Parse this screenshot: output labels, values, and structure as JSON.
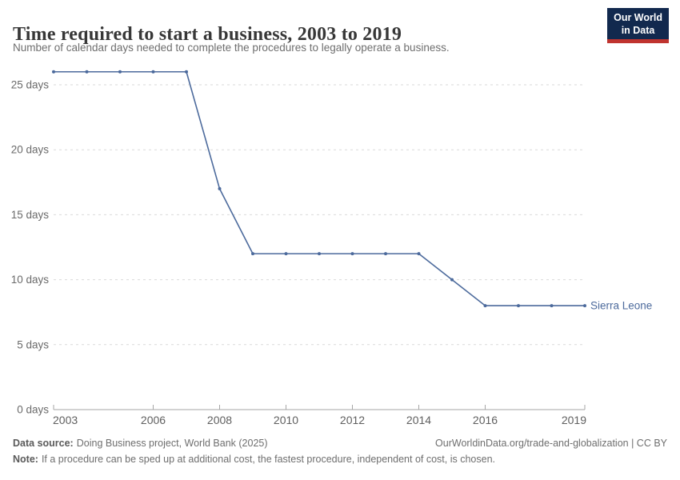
{
  "header": {
    "title": "Time required to start a business, 2003 to 2019",
    "subtitle": "Number of calendar days needed to complete the procedures to legally operate a business.",
    "logo": {
      "line1": "Our World",
      "line2": "in Data"
    }
  },
  "chart_data": {
    "type": "line",
    "title": "Time required to start a business, 2003 to 2019",
    "x": [
      2003,
      2004,
      2005,
      2006,
      2007,
      2008,
      2009,
      2010,
      2011,
      2012,
      2013,
      2014,
      2015,
      2016,
      2017,
      2018,
      2019
    ],
    "series": [
      {
        "name": "Sierra Leone",
        "color": "#4c6a9c",
        "values": [
          26,
          26,
          26,
          26,
          26,
          17,
          12,
          12,
          12,
          12,
          12,
          12,
          10,
          8,
          8,
          8,
          8
        ]
      }
    ],
    "xlabel": "",
    "ylabel": "",
    "x_ticks": [
      2003,
      2006,
      2008,
      2010,
      2012,
      2014,
      2016,
      2019
    ],
    "y_ticks": [
      0,
      5,
      10,
      15,
      20,
      25
    ],
    "y_tick_suffix": " days",
    "xlim": [
      2003,
      2019
    ],
    "ylim": [
      0,
      26
    ],
    "grid": "horizontal-dashed",
    "legend_position": "end-of-line-label"
  },
  "footer": {
    "source_label": "Data source:",
    "source_text": "Doing Business project, World Bank (2025)",
    "attribution": "OurWorldinData.org/trade-and-globalization | CC BY",
    "note_label": "Note:",
    "note_text": "If a procedure can be sped up at additional cost, the fastest procedure, independent of cost, is chosen."
  },
  "colors": {
    "line": "#4c6a9c",
    "grid": "#d9d9d9",
    "axis": "#a6a6a6",
    "y_tick_label": "#6a6a6a",
    "x_tick_label": "#5f5f5f"
  }
}
